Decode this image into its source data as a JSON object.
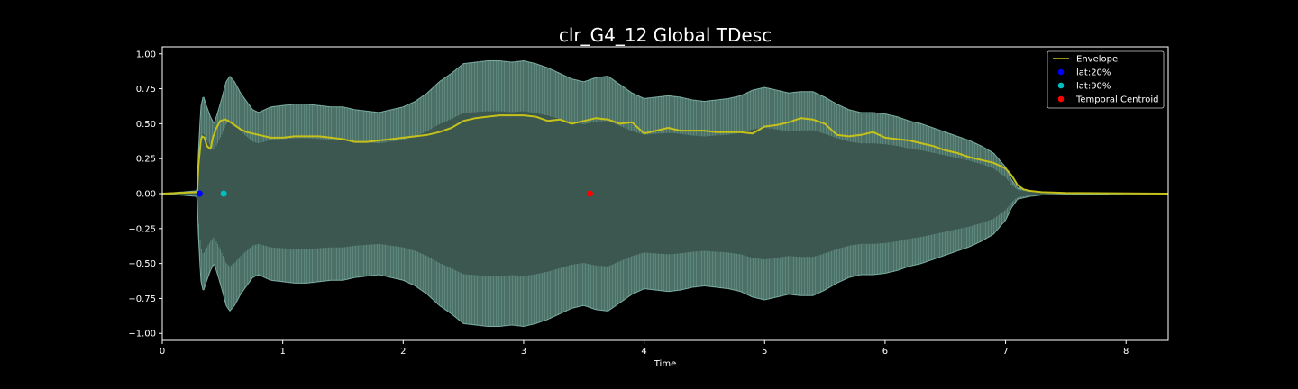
{
  "chart_data": {
    "type": "line",
    "title": "clr_G4_12 Global TDesc",
    "xlabel": "Time",
    "ylabel": "",
    "xlim": [
      0,
      8.35
    ],
    "ylim": [
      -1.05,
      1.05
    ],
    "x_ticks": [
      0,
      1,
      2,
      3,
      4,
      5,
      6,
      7,
      8
    ],
    "y_ticks": [
      1.0,
      0.75,
      0.5,
      0.25,
      0.0,
      -0.25,
      -0.5,
      -0.75,
      -1.0
    ],
    "y_tick_labels": [
      "1.00",
      "0.75",
      "0.50",
      "0.25",
      "0.00",
      "−0.25",
      "−0.50",
      "−0.75",
      "−1.00"
    ],
    "grid": false,
    "legend_position": "top-right",
    "colors": {
      "background": "#000000",
      "waveform_fill": "#3b5750",
      "waveform_peak": "#7aaea2",
      "envelope": "#c4c21a",
      "lat20": "#0000ff",
      "lat90": "#00bfbf",
      "centroid": "#ff0000",
      "axis": "#ffffff"
    },
    "waveform_peak": {
      "x": [
        0,
        0.29,
        0.3,
        0.32,
        0.34,
        0.37,
        0.4,
        0.43,
        0.46,
        0.5,
        0.53,
        0.56,
        0.6,
        0.65,
        0.7,
        0.75,
        0.8,
        0.85,
        0.9,
        1.0,
        1.1,
        1.2,
        1.3,
        1.4,
        1.5,
        1.6,
        1.7,
        1.8,
        1.9,
        2.0,
        2.1,
        2.2,
        2.3,
        2.4,
        2.5,
        2.6,
        2.7,
        2.8,
        2.9,
        3.0,
        3.1,
        3.2,
        3.3,
        3.4,
        3.5,
        3.6,
        3.7,
        3.8,
        3.9,
        4.0,
        4.1,
        4.2,
        4.3,
        4.4,
        4.5,
        4.6,
        4.7,
        4.8,
        4.9,
        5.0,
        5.1,
        5.2,
        5.3,
        5.4,
        5.5,
        5.6,
        5.7,
        5.8,
        5.9,
        6.0,
        6.1,
        6.2,
        6.3,
        6.4,
        6.5,
        6.6,
        6.7,
        6.8,
        6.9,
        7.0,
        7.05,
        7.1,
        7.2,
        7.3,
        7.5,
        8.35
      ],
      "y": [
        0.0,
        0.02,
        0.3,
        0.62,
        0.7,
        0.62,
        0.55,
        0.5,
        0.58,
        0.7,
        0.8,
        0.84,
        0.8,
        0.72,
        0.66,
        0.6,
        0.58,
        0.6,
        0.62,
        0.63,
        0.64,
        0.64,
        0.63,
        0.62,
        0.62,
        0.6,
        0.59,
        0.58,
        0.6,
        0.62,
        0.66,
        0.72,
        0.8,
        0.86,
        0.93,
        0.94,
        0.95,
        0.95,
        0.94,
        0.95,
        0.93,
        0.9,
        0.86,
        0.82,
        0.8,
        0.83,
        0.84,
        0.78,
        0.72,
        0.68,
        0.69,
        0.7,
        0.69,
        0.67,
        0.66,
        0.67,
        0.68,
        0.7,
        0.74,
        0.76,
        0.74,
        0.72,
        0.73,
        0.73,
        0.69,
        0.64,
        0.6,
        0.58,
        0.58,
        0.57,
        0.55,
        0.52,
        0.5,
        0.47,
        0.44,
        0.41,
        0.38,
        0.34,
        0.29,
        0.19,
        0.1,
        0.04,
        0.02,
        0.01,
        0.005,
        0.0
      ]
    },
    "series": [
      {
        "name": "Envelope",
        "x": [
          0,
          0.29,
          0.3,
          0.32,
          0.33,
          0.35,
          0.37,
          0.4,
          0.42,
          0.45,
          0.48,
          0.52,
          0.55,
          0.6,
          0.65,
          0.7,
          0.8,
          0.9,
          1.0,
          1.1,
          1.2,
          1.3,
          1.4,
          1.5,
          1.6,
          1.7,
          1.8,
          1.9,
          2.0,
          2.1,
          2.2,
          2.3,
          2.4,
          2.5,
          2.6,
          2.7,
          2.8,
          2.9,
          3.0,
          3.1,
          3.2,
          3.3,
          3.4,
          3.5,
          3.6,
          3.7,
          3.8,
          3.9,
          4.0,
          4.1,
          4.2,
          4.3,
          4.4,
          4.5,
          4.6,
          4.7,
          4.8,
          4.9,
          5.0,
          5.1,
          5.2,
          5.3,
          5.4,
          5.5,
          5.6,
          5.7,
          5.8,
          5.9,
          6.0,
          6.1,
          6.2,
          6.3,
          6.4,
          6.5,
          6.6,
          6.7,
          6.8,
          6.9,
          7.0,
          7.05,
          7.1,
          7.15,
          7.2,
          7.3,
          7.5,
          8.35
        ],
        "y": [
          0.0,
          0.01,
          0.2,
          0.38,
          0.41,
          0.4,
          0.34,
          0.32,
          0.4,
          0.47,
          0.52,
          0.53,
          0.52,
          0.49,
          0.46,
          0.44,
          0.42,
          0.4,
          0.4,
          0.41,
          0.41,
          0.41,
          0.4,
          0.39,
          0.37,
          0.37,
          0.38,
          0.39,
          0.4,
          0.41,
          0.42,
          0.44,
          0.47,
          0.52,
          0.54,
          0.55,
          0.56,
          0.56,
          0.56,
          0.55,
          0.52,
          0.53,
          0.5,
          0.52,
          0.54,
          0.53,
          0.5,
          0.51,
          0.43,
          0.45,
          0.47,
          0.45,
          0.45,
          0.45,
          0.44,
          0.44,
          0.44,
          0.43,
          0.48,
          0.49,
          0.51,
          0.54,
          0.53,
          0.5,
          0.42,
          0.41,
          0.42,
          0.44,
          0.4,
          0.39,
          0.38,
          0.36,
          0.34,
          0.31,
          0.29,
          0.26,
          0.24,
          0.22,
          0.18,
          0.13,
          0.06,
          0.03,
          0.02,
          0.01,
          0.005,
          0.0
        ]
      },
      {
        "name": "lat:20%",
        "x": [
          0.31
        ],
        "y": [
          0.0
        ]
      },
      {
        "name": "lat:90%",
        "x": [
          0.51
        ],
        "y": [
          0.0
        ]
      },
      {
        "name": "Temporal Centroid",
        "x": [
          3.55
        ],
        "y": [
          0.0
        ]
      }
    ]
  }
}
